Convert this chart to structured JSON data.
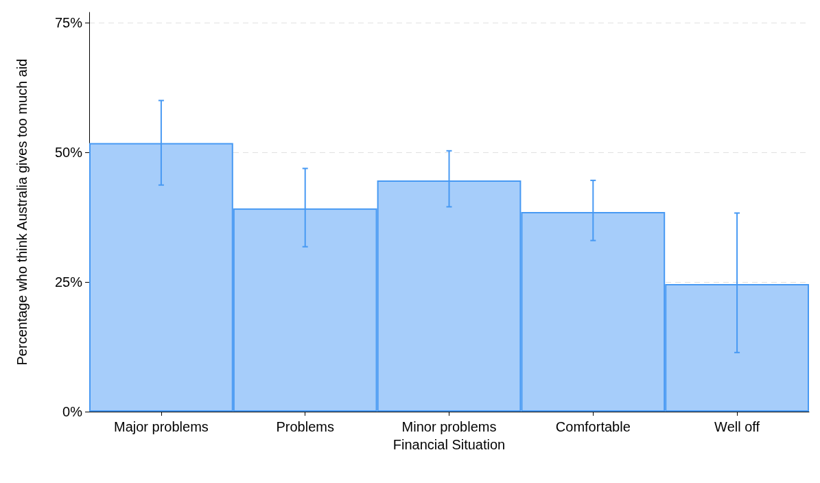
{
  "chart_data": {
    "type": "bar",
    "xlabel": "Financial Situation",
    "ylabel": "Percentage who think Australia gives too much aid",
    "categories": [
      "Major problems",
      "Problems",
      "Minor problems",
      "Comfortable",
      "Well off"
    ],
    "values": [
      51.8,
      39.2,
      44.6,
      38.5,
      24.6
    ],
    "errors": [
      [
        43.7,
        60.0
      ],
      [
        31.8,
        46.9
      ],
      [
        39.5,
        50.3
      ],
      [
        33.0,
        44.6
      ],
      [
        11.4,
        38.3
      ]
    ],
    "color": "#a6cdfa",
    "ylim": [
      0,
      77
    ],
    "yticks": [
      {
        "value": 0,
        "label": "0%"
      },
      {
        "value": 25,
        "label": "25%"
      },
      {
        "value": 50,
        "label": "50%"
      },
      {
        "value": 75,
        "label": "75%"
      }
    ],
    "grid": "y"
  }
}
